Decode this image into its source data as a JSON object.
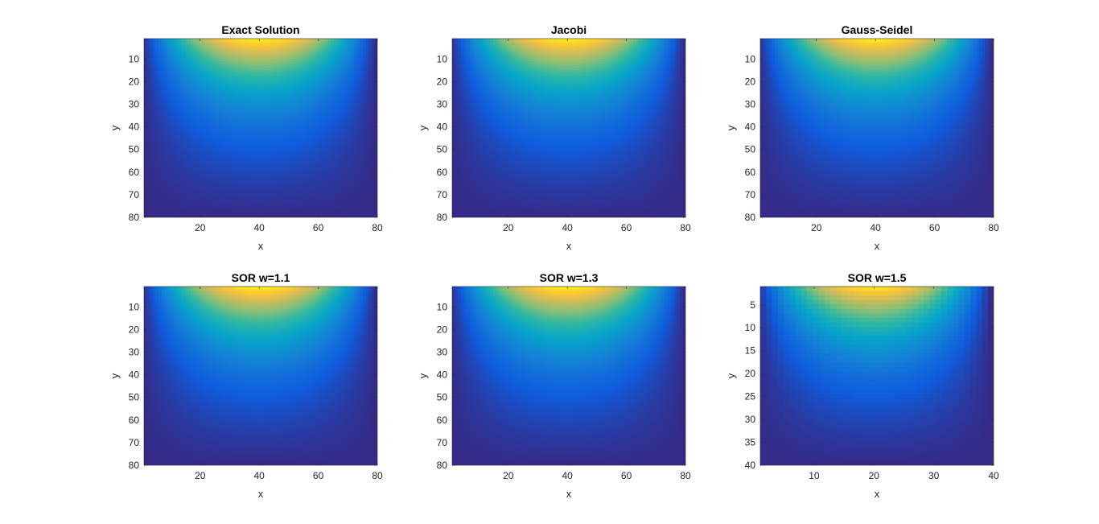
{
  "figure": {
    "colormap": "parula",
    "colormap_stops": [
      "#352a87",
      "#0f5cdd",
      "#1481d6",
      "#06a4ca",
      "#2eb7a4",
      "#87bf77",
      "#d1bb59",
      "#fec832",
      "#f9fb0e"
    ]
  },
  "chart_data": [
    {
      "type": "heatmap",
      "title": "Exact Solution",
      "xlabel": "x",
      "ylabel": "y",
      "grid_size": 80,
      "xlim": [
        1,
        80
      ],
      "ylim": [
        1,
        80
      ],
      "y_reversed": true,
      "grid": false,
      "xticks": [
        20,
        40,
        60,
        80
      ],
      "yticks": [
        10,
        20,
        30,
        40,
        50,
        60,
        70,
        80
      ],
      "value_range": [
        0,
        1
      ],
      "field": "sin(pi*x/L)*sinh(pi*(L-y)/L)/sinh(pi)"
    },
    {
      "type": "heatmap",
      "title": "Jacobi",
      "xlabel": "x",
      "ylabel": "y",
      "grid_size": 80,
      "xlim": [
        1,
        80
      ],
      "ylim": [
        1,
        80
      ],
      "y_reversed": true,
      "grid": false,
      "xticks": [
        20,
        40,
        60,
        80
      ],
      "yticks": [
        10,
        20,
        30,
        40,
        50,
        60,
        70,
        80
      ],
      "value_range": [
        0,
        1
      ],
      "field": "sin(pi*x/L)*sinh(pi*(L-y)/L)/sinh(pi)"
    },
    {
      "type": "heatmap",
      "title": "Gauss-Seidel",
      "xlabel": "x",
      "ylabel": "y",
      "grid_size": 80,
      "xlim": [
        1,
        80
      ],
      "ylim": [
        1,
        80
      ],
      "y_reversed": true,
      "grid": false,
      "xticks": [
        20,
        40,
        60,
        80
      ],
      "yticks": [
        10,
        20,
        30,
        40,
        50,
        60,
        70,
        80
      ],
      "value_range": [
        0,
        1
      ],
      "field": "sin(pi*x/L)*sinh(pi*(L-y)/L)/sinh(pi)"
    },
    {
      "type": "heatmap",
      "title": "SOR w=1.1",
      "xlabel": "x",
      "ylabel": "y",
      "grid_size": 80,
      "xlim": [
        1,
        80
      ],
      "ylim": [
        1,
        80
      ],
      "y_reversed": true,
      "grid": false,
      "xticks": [
        20,
        40,
        60,
        80
      ],
      "yticks": [
        10,
        20,
        30,
        40,
        50,
        60,
        70,
        80
      ],
      "value_range": [
        0,
        1
      ],
      "field": "sin(pi*x/L)*sinh(pi*(L-y)/L)/sinh(pi)"
    },
    {
      "type": "heatmap",
      "title": "SOR w=1.3",
      "xlabel": "x",
      "ylabel": "y",
      "grid_size": 80,
      "xlim": [
        1,
        80
      ],
      "ylim": [
        1,
        80
      ],
      "y_reversed": true,
      "grid": false,
      "xticks": [
        20,
        40,
        60,
        80
      ],
      "yticks": [
        10,
        20,
        30,
        40,
        50,
        60,
        70,
        80
      ],
      "value_range": [
        0,
        1
      ],
      "field": "sin(pi*x/L)*sinh(pi*(L-y)/L)/sinh(pi)"
    },
    {
      "type": "heatmap",
      "title": "SOR w=1.5",
      "xlabel": "x",
      "ylabel": "y",
      "grid_size": 40,
      "xlim": [
        1,
        40
      ],
      "ylim": [
        1,
        40
      ],
      "y_reversed": true,
      "grid": false,
      "xticks": [
        10,
        20,
        30,
        40
      ],
      "yticks": [
        5,
        10,
        15,
        20,
        25,
        30,
        35,
        40
      ],
      "value_range": [
        0,
        1
      ],
      "field": "sin(pi*x/L)*sinh(pi*(L-y)/L)/sinh(pi)"
    }
  ]
}
